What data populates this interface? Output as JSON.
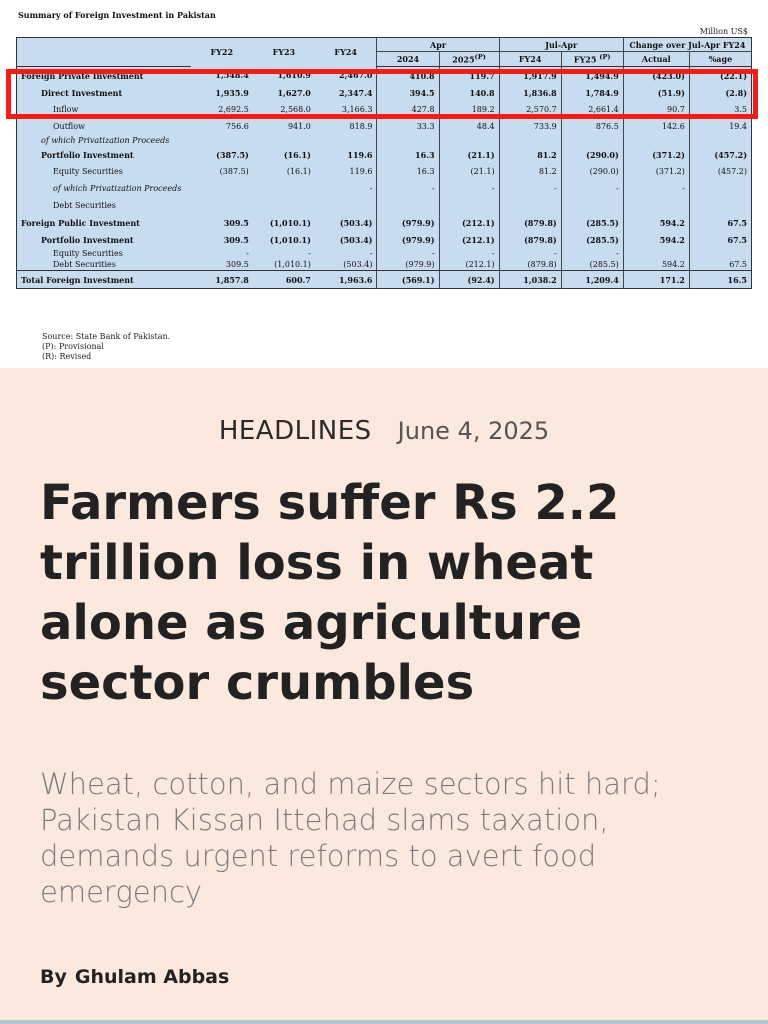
{
  "table": {
    "title": "Summary of Foreign Investment in Pakistan",
    "units": "Million US$",
    "headers": {
      "fy22": "FY22",
      "fy23": "FY23",
      "fy24": "FY24",
      "apr": "Apr",
      "apr_2024": "2024",
      "apr_2025": "2025",
      "jul_apr": "Jul-Apr",
      "jul_fy24": "FY24",
      "jul_fy25": "FY25",
      "change": "Change over Jul-Apr FY24",
      "actual": "Actual",
      "pct": "%age"
    },
    "rows": [
      {
        "label": "Foreign Private Investment",
        "v": [
          "1,548.4",
          "1,610.9",
          "2,467.0",
          "410.8",
          "119.7",
          "1,917.9",
          "1,494.9",
          "(423.0)",
          "(22.1)"
        ]
      },
      {
        "label": "Direct Investment",
        "v": [
          "1,935.9",
          "1,627.0",
          "2,347.4",
          "394.5",
          "140.8",
          "1,836.8",
          "1,784.9",
          "(51.9)",
          "(2.8)"
        ]
      },
      {
        "label": "Inflow",
        "v": [
          "2,692.5",
          "2,568.0",
          "3,166.3",
          "427.8",
          "189.2",
          "2,570.7",
          "2,661.4",
          "90.7",
          "3.5"
        ]
      },
      {
        "label": "Outflow",
        "v": [
          "756.6",
          "941.0",
          "818.9",
          "33.3",
          "48.4",
          "733.9",
          "876.5",
          "142.6",
          "19.4"
        ]
      },
      {
        "label": "of which Privatization Proceeds",
        "v": [
          "",
          "",
          "",
          "",
          "",
          "",
          "",
          "",
          ""
        ]
      },
      {
        "label": "Portfolio Investment",
        "v": [
          "(387.5)",
          "(16.1)",
          "119.6",
          "16.3",
          "(21.1)",
          "81.2",
          "(290.0)",
          "(371.2)",
          "(457.2)"
        ]
      },
      {
        "label": "Equity Securities",
        "v": [
          "(387.5)",
          "(16.1)",
          "119.6",
          "16.3",
          "(21.1)",
          "81.2",
          "(290.0)",
          "(371.2)",
          "(457.2)"
        ]
      },
      {
        "label": "of which Privatization Proceeds",
        "v": [
          "",
          "",
          "-",
          "-",
          "-",
          "-",
          "-",
          "-",
          ""
        ]
      },
      {
        "label": "Debt Securities",
        "v": [
          "",
          "",
          "",
          "",
          "",
          "",
          "",
          "",
          ""
        ]
      },
      {
        "label": "Foreign Public Investment",
        "v": [
          "309.5",
          "(1,010.1)",
          "(503.4)",
          "(979.9)",
          "(212.1)",
          "(879.8)",
          "(285.5)",
          "594.2",
          "67.5"
        ]
      },
      {
        "label": "Portfolio Investment",
        "v": [
          "309.5",
          "(1,010.1)",
          "(503.4)",
          "(979.9)",
          "(212.1)",
          "(879.8)",
          "(285.5)",
          "594.2",
          "67.5"
        ]
      },
      {
        "label": "Equity Securities",
        "v": [
          "-",
          "-",
          "-",
          "-",
          "-",
          "-",
          "-",
          "",
          ""
        ]
      },
      {
        "label": "Debt Securities",
        "v": [
          "309.5",
          "(1,010.1)",
          "(503.4)",
          "(979.9)",
          "(212.1)",
          "(879.8)",
          "(285.5)",
          "594.2",
          "67.5"
        ]
      },
      {
        "label": "Total Foreign Investment",
        "v": [
          "1,857.8",
          "600.7",
          "1,963.6",
          "(569.1)",
          "(92.4)",
          "1,038.2",
          "1,209.4",
          "171.2",
          "16.5"
        ]
      }
    ],
    "notes": [
      "Source:  State Bank of Pakistan.",
      "(P): Provisional",
      "(R): Revised"
    ]
  },
  "article": {
    "section": "HEADLINES",
    "date": "June 4, 2025",
    "headline": "Farmers suffer Rs 2.2 trillion loss in wheat alone as agriculture sector crumbles",
    "subheadline": "Wheat, cotton, and maize sectors hit hard; Pakistan Kissan Ittehad slams taxation, demands urgent reforms to avert food emergency",
    "by": "By",
    "author": "Ghulam Abbas"
  },
  "colors": {
    "highlight": "#ff1a14",
    "table_bg": "#c8dcef",
    "article_bg": "#fbe9dd"
  }
}
